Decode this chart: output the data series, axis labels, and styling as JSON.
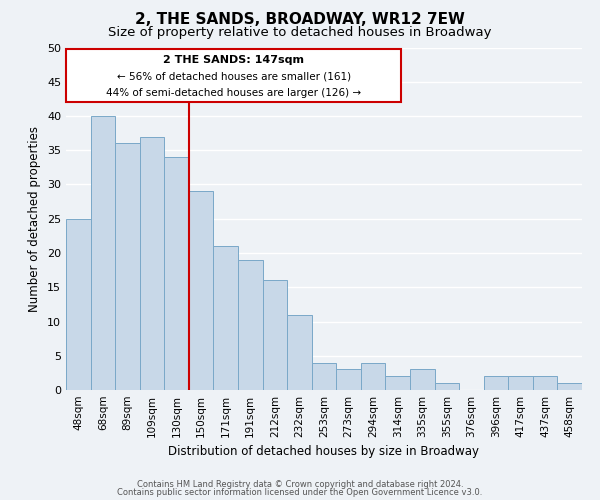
{
  "title": "2, THE SANDS, BROADWAY, WR12 7EW",
  "subtitle": "Size of property relative to detached houses in Broadway",
  "xlabel": "Distribution of detached houses by size in Broadway",
  "ylabel": "Number of detached properties",
  "bar_labels": [
    "48sqm",
    "68sqm",
    "89sqm",
    "109sqm",
    "130sqm",
    "150sqm",
    "171sqm",
    "191sqm",
    "212sqm",
    "232sqm",
    "253sqm",
    "273sqm",
    "294sqm",
    "314sqm",
    "335sqm",
    "355sqm",
    "376sqm",
    "396sqm",
    "417sqm",
    "437sqm",
    "458sqm"
  ],
  "bar_values": [
    25,
    40,
    36,
    37,
    34,
    29,
    21,
    19,
    16,
    11,
    4,
    3,
    4,
    2,
    3,
    1,
    0,
    2,
    2,
    2,
    1
  ],
  "bar_color": "#c8d8e8",
  "bar_edgecolor": "#7aa8c8",
  "highlight_index": 5,
  "highlight_color": "#cc0000",
  "ylim": [
    0,
    50
  ],
  "annotation_title": "2 THE SANDS: 147sqm",
  "annotation_line1": "← 56% of detached houses are smaller (161)",
  "annotation_line2": "44% of semi-detached houses are larger (126) →",
  "annotation_box_color": "#cc0000",
  "footer1": "Contains HM Land Registry data © Crown copyright and database right 2024.",
  "footer2": "Contains public sector information licensed under the Open Government Licence v3.0.",
  "background_color": "#eef2f6",
  "grid_color": "#ffffff",
  "title_fontsize": 11,
  "subtitle_fontsize": 9.5
}
